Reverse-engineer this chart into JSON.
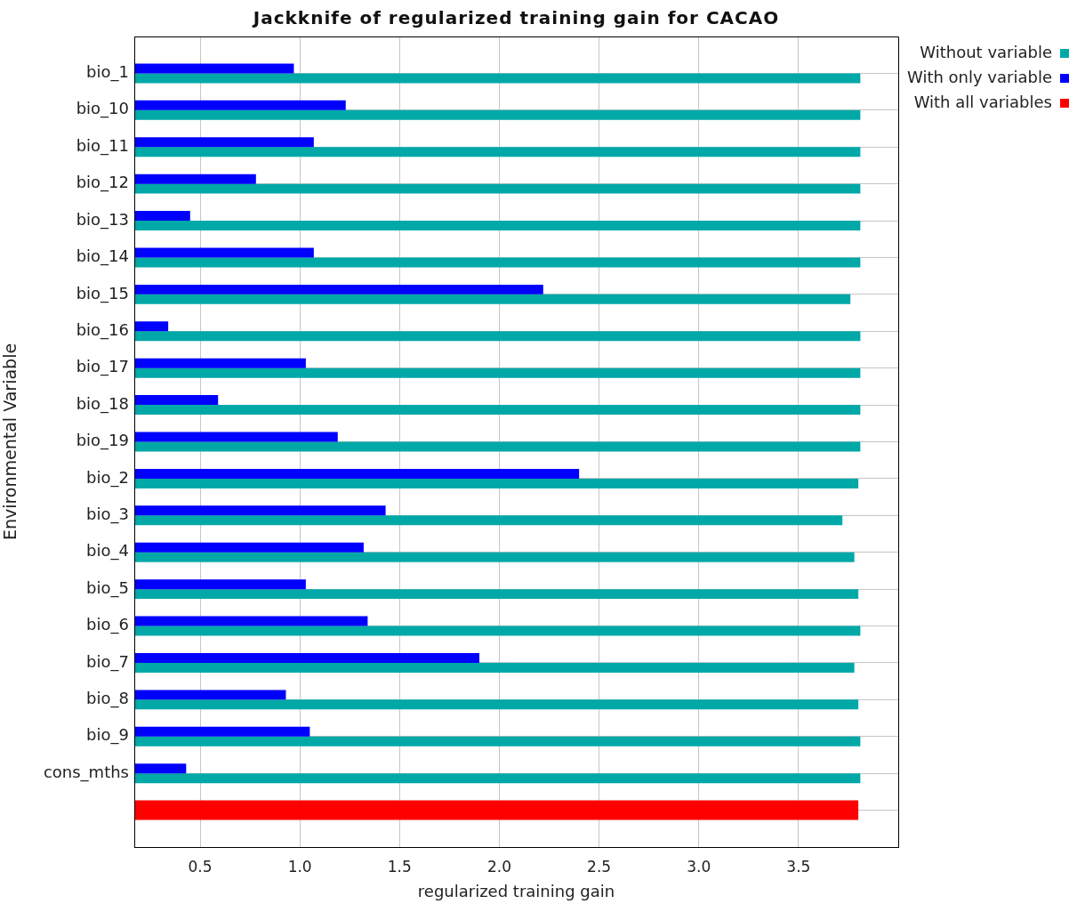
{
  "chart_data": {
    "type": "bar",
    "orientation": "horizontal",
    "title": "Jackknife of regularized training gain for CACAO",
    "xlabel": "regularized training gain",
    "ylabel": "Environmental Variable",
    "categories": [
      "bio_1",
      "bio_10",
      "bio_11",
      "bio_12",
      "bio_13",
      "bio_14",
      "bio_15",
      "bio_16",
      "bio_17",
      "bio_18",
      "bio_19",
      "bio_2",
      "bio_3",
      "bio_4",
      "bio_5",
      "bio_6",
      "bio_7",
      "bio_8",
      "bio_9",
      "cons_mths",
      null
    ],
    "series": [
      {
        "name": "Without variable",
        "color": "#00a8a8",
        "values": [
          3.81,
          3.81,
          3.81,
          3.81,
          3.81,
          3.81,
          3.76,
          3.81,
          3.81,
          3.81,
          3.81,
          3.8,
          3.72,
          3.78,
          3.8,
          3.81,
          3.78,
          3.8,
          3.81,
          3.81,
          null
        ]
      },
      {
        "name": "With only variable",
        "color": "#0000ff",
        "values": [
          0.97,
          1.23,
          1.07,
          0.78,
          0.45,
          1.07,
          2.22,
          0.34,
          1.03,
          0.59,
          1.19,
          2.4,
          1.43,
          1.32,
          1.03,
          1.34,
          1.9,
          0.93,
          1.05,
          0.43,
          null
        ]
      },
      {
        "name": "With all variables",
        "color": "#ff0000",
        "values": [
          null,
          null,
          null,
          null,
          null,
          null,
          null,
          null,
          null,
          null,
          null,
          null,
          null,
          null,
          null,
          null,
          null,
          null,
          null,
          null,
          3.8
        ]
      }
    ],
    "xlim": [
      0.17,
      4.0
    ],
    "xticks": [
      0.5,
      {
        "value": 1,
        "label": "1.0"
      },
      1.5,
      {
        "value": 2,
        "label": "2.0"
      },
      2.5,
      {
        "value": 3,
        "label": "3.0"
      },
      3.5
    ],
    "grid": true,
    "legend": "top right"
  }
}
